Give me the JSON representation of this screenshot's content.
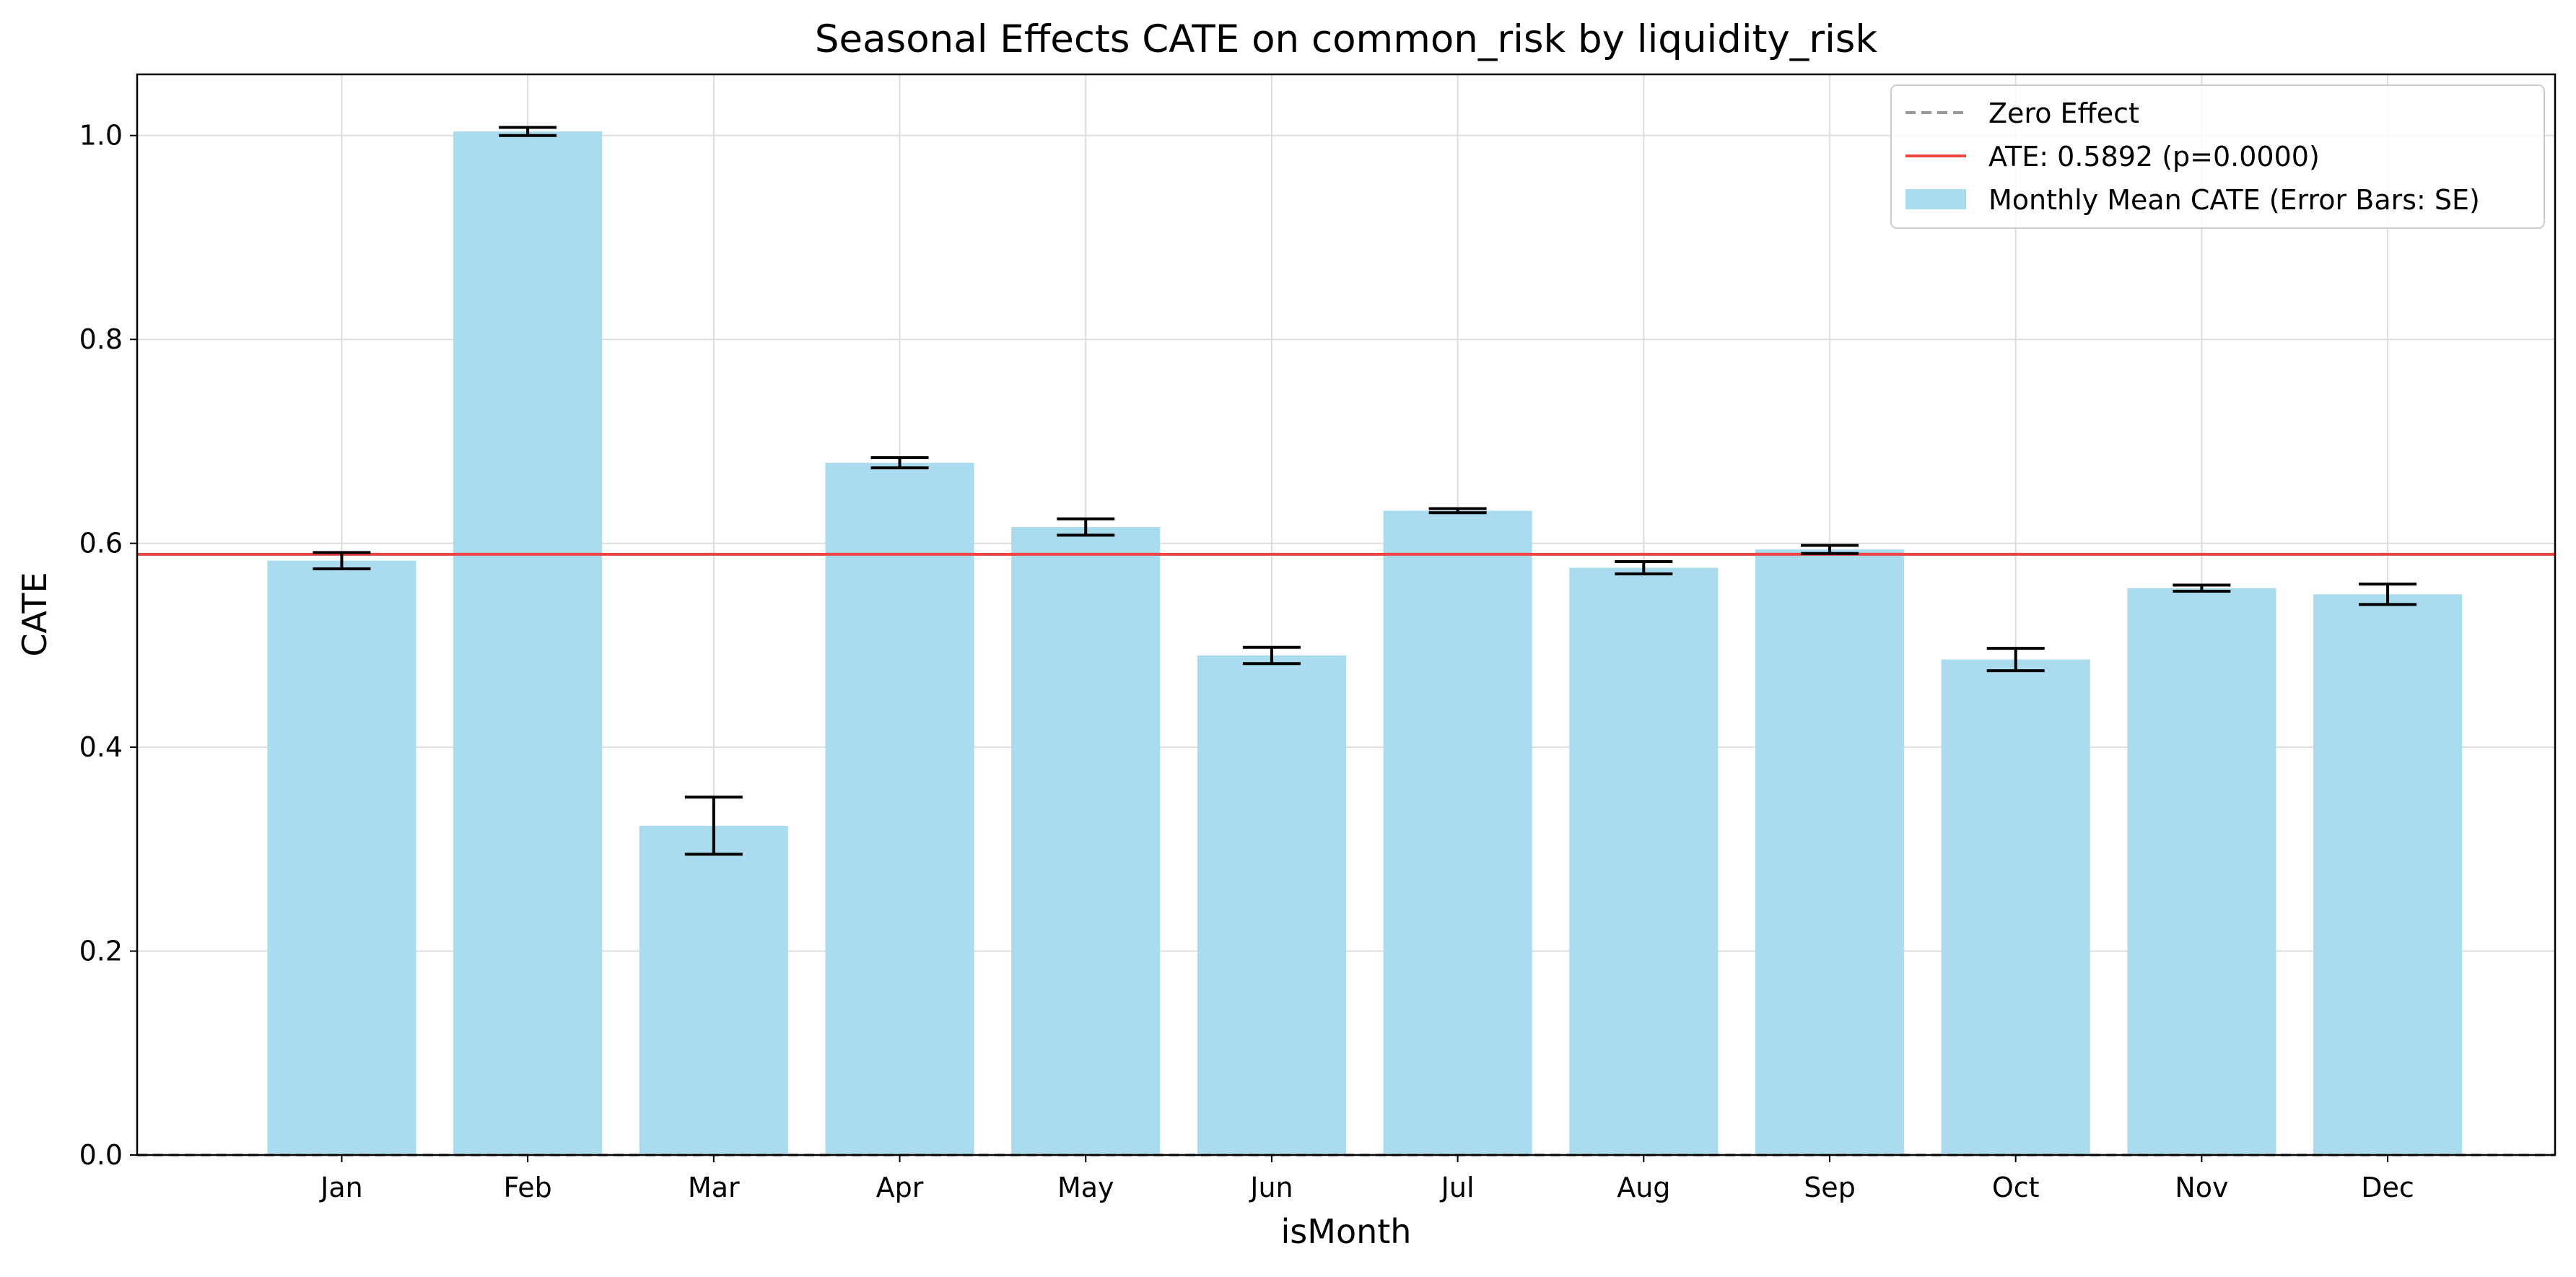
{
  "chart_data": {
    "type": "bar",
    "title": "Seasonal Effects CATE  on common_risk by liquidity_risk",
    "xlabel": "isMonth",
    "ylabel": "CATE",
    "categories": [
      "Jan",
      "Feb",
      "Mar",
      "Apr",
      "May",
      "Jun",
      "Jul",
      "Aug",
      "Sep",
      "Oct",
      "Nov",
      "Dec"
    ],
    "series": [
      {
        "name": "Monthly Mean CATE (Error Bars: SE)",
        "values": [
          0.583,
          1.004,
          0.323,
          0.679,
          0.616,
          0.49,
          0.632,
          0.576,
          0.594,
          0.486,
          0.556,
          0.55
        ],
        "errors": [
          0.008,
          0.004,
          0.028,
          0.005,
          0.008,
          0.008,
          0.002,
          0.006,
          0.004,
          0.011,
          0.003,
          0.01
        ],
        "color": "#abdbee"
      }
    ],
    "reference_lines": [
      {
        "name": "Zero Effect",
        "y": 0.0,
        "style": "dashed",
        "color": "#999999"
      },
      {
        "name": "ATE: 0.5892 (p=0.0000)",
        "y": 0.5892,
        "style": "solid",
        "color": "#ee4444"
      }
    ],
    "ylim": [
      0.0,
      1.06
    ],
    "yticks": [
      0.0,
      0.2,
      0.4,
      0.6,
      0.8,
      1.0
    ],
    "ytick_labels": [
      "0.0",
      "0.2",
      "0.4",
      "0.6",
      "0.8",
      "1.0"
    ],
    "grid": true,
    "legend": {
      "position": "top-right",
      "entries": [
        "Zero Effect",
        "ATE: 0.5892 (p=0.0000)",
        "Monthly Mean CATE (Error Bars: SE)"
      ]
    }
  }
}
